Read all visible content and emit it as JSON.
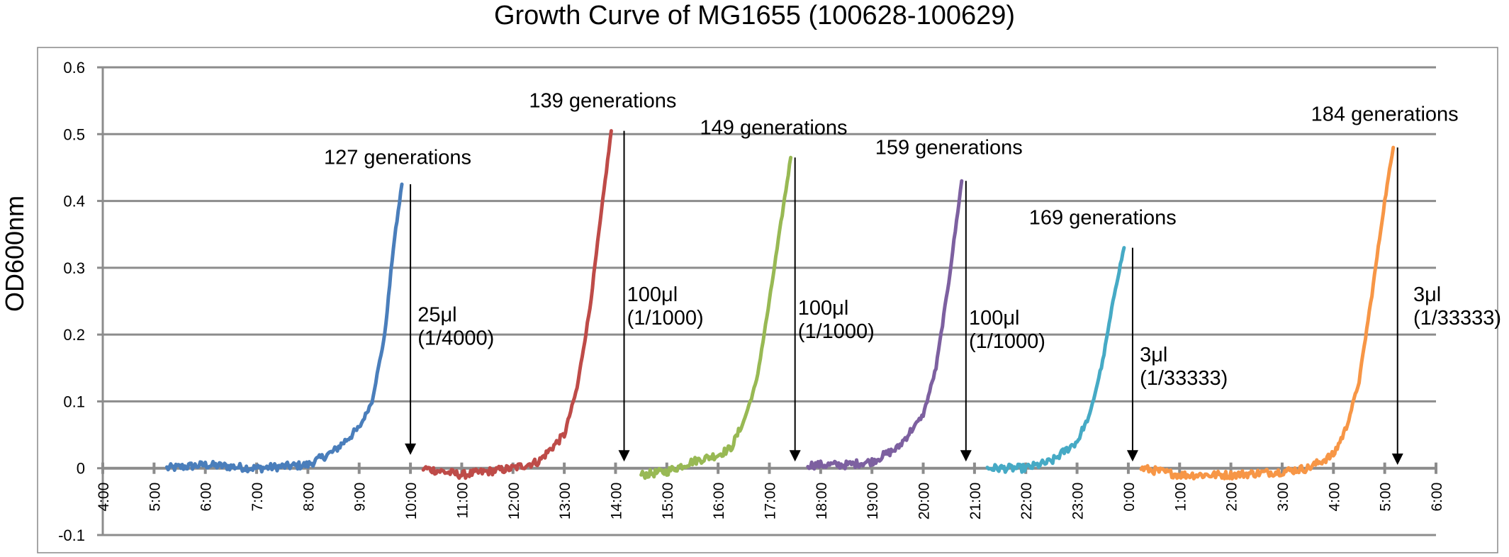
{
  "chart_data": {
    "type": "line",
    "title": "Growth Curve of MG1655 (100628-100629)",
    "ylabel": "OD600nm",
    "xlabel": "",
    "ylim": [
      -0.1,
      0.6
    ],
    "yticks": [
      "0.6",
      "0.5",
      "0.4",
      "0.3",
      "0.2",
      "0.1",
      "0",
      "-0.1"
    ],
    "x_start": "4:00",
    "x_end": "6:00",
    "xticks": [
      "4:00",
      "5:00",
      "6:00",
      "7:00",
      "8:00",
      "9:00",
      "10:00",
      "11:00",
      "12:00",
      "13:00",
      "14:00",
      "15:00",
      "16:00",
      "17:00",
      "18:00",
      "19:00",
      "20:00",
      "21:00",
      "22:00",
      "23:00",
      "0:00",
      "1:00",
      "2:00",
      "3:00",
      "4:00",
      "5:00",
      "6:00"
    ],
    "grid": true,
    "legend": "none",
    "series": [
      {
        "color": "#4a7ebb",
        "x": [
          "5:15",
          "6:00",
          "7:00",
          "8:00",
          "8:30",
          "9:00",
          "9:15",
          "9:30",
          "9:40",
          "9:50"
        ],
        "y": [
          0.0,
          0.005,
          0.0,
          0.005,
          0.025,
          0.06,
          0.1,
          0.2,
          0.33,
          0.425
        ]
      },
      {
        "color": "#be4b48",
        "x": [
          "10:15",
          "11:00",
          "11:30",
          "12:00",
          "12:30",
          "13:00",
          "13:15",
          "13:30",
          "13:45",
          "13:55"
        ],
        "y": [
          0.0,
          -0.01,
          -0.005,
          0.0,
          0.01,
          0.05,
          0.12,
          0.24,
          0.4,
          0.505
        ]
      },
      {
        "color": "#98b954",
        "x": [
          "14:30",
          "15:00",
          "15:30",
          "16:00",
          "16:15",
          "16:30",
          "16:45",
          "17:00",
          "17:15",
          "17:25"
        ],
        "y": [
          -0.01,
          -0.005,
          0.01,
          0.02,
          0.03,
          0.07,
          0.13,
          0.25,
          0.38,
          0.465
        ]
      },
      {
        "color": "#7d60a0",
        "x": [
          "17:45",
          "18:30",
          "19:00",
          "19:30",
          "20:00",
          "20:15",
          "20:30",
          "20:45"
        ],
        "y": [
          0.005,
          0.005,
          0.01,
          0.03,
          0.08,
          0.15,
          0.28,
          0.43
        ]
      },
      {
        "color": "#46aac5",
        "x": [
          "21:15",
          "22:00",
          "22:30",
          "23:00",
          "23:15",
          "23:30",
          "23:45",
          "23:55"
        ],
        "y": [
          0.0,
          0.0,
          0.01,
          0.04,
          0.08,
          0.16,
          0.27,
          0.33
        ]
      },
      {
        "color": "#f79646",
        "x": [
          "0:15",
          "1:00",
          "2:00",
          "3:00",
          "3:30",
          "4:00",
          "4:15",
          "4:30",
          "4:45",
          "5:00",
          "5:10"
        ],
        "y": [
          0.0,
          -0.01,
          -0.01,
          -0.005,
          0.0,
          0.02,
          0.06,
          0.13,
          0.26,
          0.4,
          0.48
        ]
      }
    ],
    "annotations": [
      {
        "text": "127 generations",
        "x": "9:45",
        "y": 0.455
      },
      {
        "text": "139 generations",
        "x": "13:45",
        "y": 0.54
      },
      {
        "text": "149 generations",
        "x": "17:05",
        "y": 0.5
      },
      {
        "text": "159 generations",
        "x": "20:30",
        "y": 0.47
      },
      {
        "text": "169 generations",
        "x": "23:30",
        "y": 0.365
      },
      {
        "text": "184 generations",
        "x": "5:00",
        "y": 0.52
      },
      {
        "text": "25μl",
        "x": "10:25",
        "y": 0.22
      },
      {
        "text": "(1/4000)",
        "x": "10:25",
        "y": 0.185
      },
      {
        "text": "100μl",
        "x": "14:30",
        "y": 0.25
      },
      {
        "text": "(1/1000)",
        "x": "14:30",
        "y": 0.215
      },
      {
        "text": "100μl",
        "x": "17:50",
        "y": 0.23
      },
      {
        "text": "(1/1000)",
        "x": "17:50",
        "y": 0.195
      },
      {
        "text": "100μl",
        "x": "21:10",
        "y": 0.215
      },
      {
        "text": "(1/1000)",
        "x": "21:10",
        "y": 0.18
      },
      {
        "text": "3μl",
        "x": "0:30",
        "y": 0.16
      },
      {
        "text": "(1/33333)",
        "x": "0:30",
        "y": 0.125
      },
      {
        "text": "3μl",
        "x": "5:50",
        "y": 0.25
      },
      {
        "text": "(1/33333)",
        "x": "5:50",
        "y": 0.215
      }
    ],
    "arrows": [
      {
        "x": "10:00",
        "y_from": 0.425,
        "y_to": 0.02
      },
      {
        "x": "14:10",
        "y_from": 0.505,
        "y_to": 0.01
      },
      {
        "x": "17:30",
        "y_from": 0.465,
        "y_to": 0.01
      },
      {
        "x": "20:50",
        "y_from": 0.43,
        "y_to": 0.01
      },
      {
        "x": "0:05",
        "y_from": 0.33,
        "y_to": 0.01
      },
      {
        "x": "5:15",
        "y_from": 0.48,
        "y_to": 0.005
      }
    ]
  }
}
